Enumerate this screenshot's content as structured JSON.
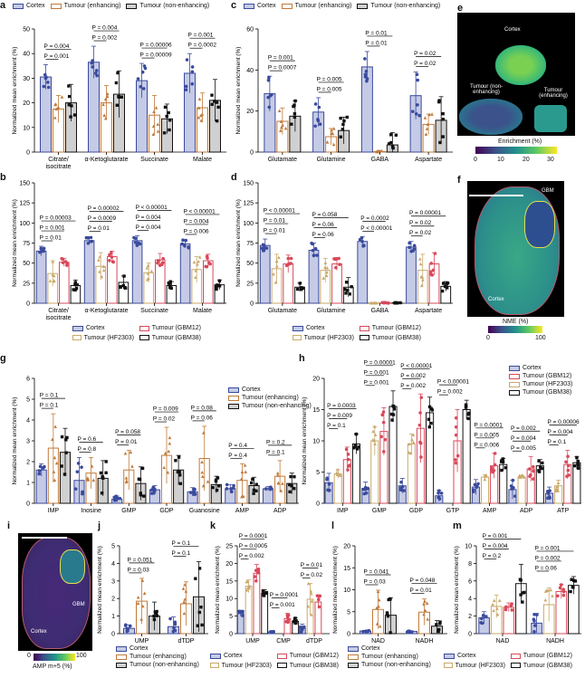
{
  "colors": {
    "cortex": "#3a4a9c",
    "cortex_fill": "#c5cbe6",
    "enhancing": "#c07a3a",
    "nonenhancing": "#111111",
    "nonenhancing_fill": "#d0d0d0",
    "hf2303": "#c9a96a",
    "gbm12": "#d9485a",
    "gbm38": "#111111"
  },
  "legends": {
    "three": [
      "Cortex",
      "Tumour (enhancing)",
      "Tumour (non-enhancing)"
    ],
    "four": [
      "Cortex",
      "Tumour (GBM12)",
      "Tumour (HF2303)",
      "Tumour (GBM38)"
    ]
  },
  "images": {
    "e": {
      "label": "e",
      "regions": [
        "Cortex",
        "Tumour (non-enhancing)",
        "Tumour (enhancing)"
      ],
      "colorbar_title": "Enrichment (%)",
      "colorbar_ticks": [
        "0",
        "10",
        "20",
        "30"
      ]
    },
    "f": {
      "label": "f",
      "annotations": [
        "GBM",
        "Cortex"
      ],
      "colorbar_title": "NME (%)",
      "colorbar_ticks": [
        "0",
        "100"
      ]
    },
    "i": {
      "label": "i",
      "annotations": [
        "GBM",
        "Cortex"
      ],
      "colorbar_title": "AMP m+5 (%)",
      "colorbar_ticks": [
        "0",
        "100"
      ]
    }
  },
  "chart_data": [
    {
      "id": "a",
      "type": "bar",
      "legend": "three",
      "ylabel": "Normalized mean enrichment (%)",
      "ylim": [
        0,
        50
      ],
      "yticks": [
        0,
        10,
        20,
        30,
        40,
        50
      ],
      "categories": [
        "Citrate/\nisocitrate",
        "α-Ketoglutarate",
        "Succinate",
        "Malate"
      ],
      "series": [
        {
          "name": "Cortex",
          "values": [
            30.5,
            36.5,
            29,
            32
          ],
          "err": [
            5,
            6.5,
            7,
            8
          ]
        },
        {
          "name": "Tumour (enhancing)",
          "values": [
            17.5,
            20,
            15,
            18
          ],
          "err": [
            5.5,
            7,
            8,
            6
          ]
        },
        {
          "name": "Tumour (non-enhancing)",
          "values": [
            20,
            23.5,
            13.5,
            21
          ],
          "err": [
            7.5,
            9.5,
            6,
            8.5
          ]
        }
      ],
      "pvalues": [
        [
          "P = 0.001",
          "P = 0.004"
        ],
        [
          "P = 0.002",
          "P = 0.004"
        ],
        [
          "P = 0.00009",
          "P = 0.00006"
        ],
        [
          "P = 0.0002",
          "P = 0.001"
        ]
      ]
    },
    {
      "id": "b",
      "type": "bar",
      "legend": "four",
      "ylabel": "Normalized mean enrichment (%)",
      "ylim": [
        0,
        150
      ],
      "yticks": [
        0,
        25,
        50,
        75,
        100,
        125,
        150
      ],
      "categories": [
        "Citrate/\nisocitrate",
        "α-Ketoglutarate",
        "Succinate",
        "Malate"
      ],
      "series": [
        {
          "name": "Cortex",
          "values": [
            65,
            78,
            78,
            74
          ],
          "err": [
            6,
            5,
            6,
            5
          ]
        },
        {
          "name": "Tumour (HF2303)",
          "values": [
            37,
            46,
            38,
            42
          ],
          "err": [
            16,
            17,
            12,
            16
          ]
        },
        {
          "name": "Tumour (GBM12)",
          "values": [
            51,
            58,
            54,
            53
          ],
          "err": [
            5,
            7,
            8,
            8
          ]
        },
        {
          "name": "Tumour (GBM38)",
          "values": [
            22,
            26,
            22,
            23
          ],
          "err": [
            7,
            8,
            5,
            6
          ]
        }
      ],
      "pvalues": [
        [
          "P = 0.01",
          "P = 0.001",
          "P = 0.00003"
        ],
        [
          "P = 0.01",
          "P = 0.0009",
          "P = 0.00002"
        ],
        [
          "P = 0.004",
          "P = 0.004",
          "P < 0.00001"
        ],
        [
          "P = 0.006",
          "P = 0.004",
          "P < 0.00001"
        ]
      ]
    },
    {
      "id": "c",
      "type": "bar",
      "legend": "three",
      "ylabel": "Normalized mean enrichment (%)",
      "ylim": [
        0,
        60
      ],
      "yticks": [
        0,
        20,
        40,
        60
      ],
      "categories": [
        "Glutamate",
        "Glutamine",
        "GABA",
        "Aspartate"
      ],
      "series": [
        {
          "name": "Cortex",
          "values": [
            28.5,
            19.5,
            41.5,
            27.5
          ],
          "err": [
            8.5,
            7,
            7.5,
            11.5
          ]
        },
        {
          "name": "Tumour (enhancing)",
          "values": [
            15,
            7.5,
            0.3,
            13.5
          ],
          "err": [
            6.5,
            4,
            0.3,
            5
          ]
        },
        {
          "name": "Tumour (non-enhancing)",
          "values": [
            17.5,
            10.5,
            3.5,
            15.5
          ],
          "err": [
            7.5,
            6.5,
            6,
            11.5
          ]
        }
      ],
      "pvalues": [
        [
          "P = 0.0007",
          "P = 0.001"
        ],
        [
          "P = 0.005",
          "P = 0.005"
        ],
        [
          "P = 0.01",
          "P = 0.01"
        ],
        [
          "P = 0.02",
          "P = 0.02"
        ]
      ]
    },
    {
      "id": "d",
      "type": "bar",
      "legend": "four",
      "ylabel": "Normalized mean enrichment (%)",
      "ylim": [
        0,
        150
      ],
      "yticks": [
        0,
        25,
        50,
        75,
        100,
        125,
        150
      ],
      "categories": [
        "Glutamate",
        "Glutamine",
        "GABA",
        "Aspartate"
      ],
      "series": [
        {
          "name": "Cortex",
          "values": [
            72,
            66,
            77,
            70
          ],
          "err": [
            8,
            9,
            6,
            7
          ]
        },
        {
          "name": "Tumour (HF2303)",
          "values": [
            43,
            41,
            0.5,
            41
          ],
          "err": [
            18,
            15,
            0.5,
            20
          ]
        },
        {
          "name": "Tumour (GBM12)",
          "values": [
            49,
            49,
            0.5,
            49
          ],
          "err": [
            11,
            8,
            0.5,
            14
          ]
        },
        {
          "name": "Tumour (GBM38)",
          "values": [
            20,
            20,
            0.5,
            21
          ],
          "err": [
            5,
            12,
            0.5,
            6
          ]
        }
      ],
      "pvalues": [
        [
          "P = 0.01",
          "P = 0.01",
          "P < 0.00001"
        ],
        [
          "P = 0.06",
          "P = 0.06",
          "P = 0.058"
        ],
        [
          "P < 0.00001",
          "P = 0.0002"
        ],
        [
          "P = 0.02",
          "P = 0.02",
          "P = 0.00001"
        ]
      ]
    },
    {
      "id": "g",
      "type": "bar",
      "legend": "three",
      "ylabel": "Normalized mean enrichment (%)",
      "ylim": [
        0,
        6
      ],
      "yticks": [
        0,
        1,
        2,
        3,
        4,
        5,
        6
      ],
      "categories": [
        "IMP",
        "Inosine",
        "GMP",
        "GDP",
        "Guanosine",
        "AMP",
        "ADP"
      ],
      "series": [
        {
          "name": "Cortex",
          "values": [
            1.6,
            1.1,
            0.2,
            0.65,
            0.55,
            0.7,
            0.7
          ],
          "err": [
            0.3,
            1.1,
            0.15,
            0.2,
            0.2,
            0.2,
            0.1
          ]
        },
        {
          "name": "Tumour (enhancing)",
          "values": [
            2.65,
            1.45,
            1.6,
            2.3,
            2.15,
            1.1,
            1.3
          ],
          "err": [
            1.65,
            0.75,
            0.95,
            1.35,
            1.55,
            0.8,
            0.75
          ]
        },
        {
          "name": "Tumour (non-enhancing)",
          "values": [
            2.45,
            1.2,
            0.95,
            1.6,
            0.9,
            0.85,
            0.95
          ],
          "err": [
            1.15,
            0.85,
            0.8,
            0.7,
            0.4,
            0.4,
            0.5
          ]
        }
      ],
      "pvalues": [
        [
          "P = 0.1",
          "P = 0.1"
        ],
        [
          "P = 0.8",
          "P = 0.6"
        ],
        [
          "P = 0.01",
          "P = 0.058"
        ],
        [
          "P = 0.02",
          "P = 0.009"
        ],
        [
          "P = 0.06",
          "P = 0.08"
        ],
        [
          "P = 0.4",
          "P = 0.4"
        ],
        [
          "P = 0.1",
          "P = 0.2"
        ]
      ]
    },
    {
      "id": "h",
      "type": "bar",
      "legend": "four",
      "ylabel": "Normalized mean enrichment (%)",
      "ylim": [
        0,
        20
      ],
      "yticks": [
        0,
        5,
        10,
        15,
        20
      ],
      "categories": [
        "IMP",
        "GMP",
        "GDP",
        "GTP",
        "AMP",
        "ADP",
        "ATP"
      ],
      "series": [
        {
          "name": "Cortex",
          "values": [
            3.3,
            2.4,
            2.8,
            1.2,
            2.6,
            2.2,
            1.6
          ],
          "err": [
            1.5,
            1.0,
            1.2,
            0.9,
            1.2,
            1.5,
            1.0
          ]
        },
        {
          "name": "Tumour (HF2303)",
          "values": [
            4.7,
            10,
            9.5,
            0,
            4.2,
            4.2,
            2.8
          ],
          "err": [
            0.7,
            2.3,
            1.6,
            0,
            0.4,
            0.3,
            0.9
          ]
        },
        {
          "name": "Tumour (GBM12)",
          "values": [
            7,
            11.5,
            12,
            10,
            6,
            5.5,
            6.2
          ],
          "err": [
            2,
            3.8,
            5.5,
            5,
            2,
            2,
            2.3
          ]
        },
        {
          "name": "Tumour (GBM38)",
          "values": [
            9.5,
            15.5,
            14.5,
            15,
            6.2,
            6,
            6.5
          ],
          "err": [
            1.6,
            2.5,
            2.5,
            1.5,
            1.0,
            1.0,
            1.0
          ]
        }
      ],
      "pvalues": [
        [
          "P = 0.1",
          "P = 0.009",
          "P = 0.0003"
        ],
        [
          "P = 0.001",
          "P = 0.001",
          "P = 0.00001"
        ],
        [
          "P = 0.002",
          "P = 0.002",
          "P < 0.00001"
        ],
        [
          "P = 0.002",
          "P < 0.00001"
        ],
        [
          "P = 0.006",
          "P = 0.005",
          "P = 0.0001"
        ],
        [
          "P = 0.005",
          "P = 0.004",
          "P = 0.002"
        ],
        [
          "P = 0.1",
          "P = 0.004",
          "P = 0.00006"
        ]
      ]
    },
    {
      "id": "j",
      "type": "bar",
      "legend": "three",
      "ylabel": "Normalized mean enrichment (%)",
      "ylim": [
        0,
        5
      ],
      "yticks": [
        0,
        1,
        2,
        3,
        4,
        5
      ],
      "categories": [
        "UMP",
        "dTDP"
      ],
      "series": [
        {
          "name": "Cortex",
          "values": [
            0.3,
            0.4
          ],
          "err": [
            0.2,
            0.55
          ]
        },
        {
          "name": "Tumour (enhancing)",
          "values": [
            1.85,
            1.7
          ],
          "err": [
            1.3,
            1.25
          ]
        },
        {
          "name": "Tumour (non-enhancing)",
          "values": [
            1.0,
            2.1
          ],
          "err": [
            0.8,
            2.0
          ]
        }
      ],
      "pvalues": [
        [
          "P = 0.03",
          "P = 0.051"
        ],
        [
          "P = 0.1",
          "P = 0.1"
        ]
      ]
    },
    {
      "id": "k",
      "type": "bar",
      "legend": "four",
      "ylabel": "Normalized mean enrichment (%)",
      "ylim": [
        0,
        25
      ],
      "yticks": [
        0,
        5,
        10,
        15,
        20,
        25
      ],
      "categories": [
        "UMP",
        "CMP",
        "dTDP"
      ],
      "series": [
        {
          "name": "Cortex",
          "values": [
            5.7,
            0.5,
            1.5
          ],
          "err": [
            0.8,
            0.2,
            1.2
          ]
        },
        {
          "name": "Tumour (HF2303)",
          "values": [
            13.5,
            0,
            9.8
          ],
          "err": [
            1.8,
            0,
            4.5
          ]
        },
        {
          "name": "Tumour (GBM12)",
          "values": [
            17.2,
            4.3,
            9
          ],
          "err": [
            2.5,
            1.5,
            1.8
          ]
        },
        {
          "name": "Tumour (GBM38)",
          "values": [
            11.5,
            3.5,
            0
          ],
          "err": [
            1,
            1,
            0
          ]
        }
      ],
      "pvalues": [
        [
          "P = 0.002",
          "P = 0.0005",
          "P = 0.0001"
        ],
        [
          "P = 0.001",
          "P = 0.0001"
        ],
        [
          "P = 0.02",
          "P = 0.01"
        ]
      ]
    },
    {
      "id": "l",
      "type": "bar",
      "legend": "three",
      "ylabel": "Normalized mean enrichment (%)",
      "ylim": [
        0,
        20
      ],
      "yticks": [
        0,
        5,
        10,
        15,
        20
      ],
      "categories": [
        "NAD",
        "NADH"
      ],
      "series": [
        {
          "name": "Cortex",
          "values": [
            0.6,
            0.5
          ],
          "err": [
            0.15,
            0.1
          ]
        },
        {
          "name": "Tumour (enhancing)",
          "values": [
            5.5,
            4.9
          ],
          "err": [
            4.4,
            3.0
          ]
        },
        {
          "name": "Tumour (non-enhancing)",
          "values": [
            4.2,
            1.7
          ],
          "err": [
            4.0,
            1.3
          ]
        }
      ],
      "pvalues": [
        [
          "P = 0.03",
          "P = 0.041"
        ],
        [
          "P = 0.01",
          "P = 0.048"
        ]
      ]
    },
    {
      "id": "m",
      "type": "bar",
      "legend": "four",
      "ylabel": "Normalized mean enrichment (%)",
      "ylim": [
        0,
        10
      ],
      "yticks": [
        0,
        2,
        4,
        6,
        8,
        10
      ],
      "categories": [
        "NAD",
        "NADH"
      ],
      "series": [
        {
          "name": "Cortex",
          "values": [
            1.8,
            1.2
          ],
          "err": [
            0.7,
            1.1
          ]
        },
        {
          "name": "Tumour (HF2303)",
          "values": [
            3.1,
            3.3
          ],
          "err": [
            1.3,
            1.9
          ]
        },
        {
          "name": "Tumour (GBM12)",
          "values": [
            3.0,
            4.8
          ],
          "err": [
            0.5,
            0.8
          ]
        },
        {
          "name": "Tumour (GBM38)",
          "values": [
            5.7,
            5.5
          ],
          "err": [
            2.2,
            1.0
          ]
        }
      ],
      "pvalues": [
        [
          "P = 0.2",
          "P = 0.004",
          "P = 0.001"
        ],
        [
          "P = 0.06",
          "P = 0.002",
          "P = 0.001"
        ]
      ]
    }
  ]
}
